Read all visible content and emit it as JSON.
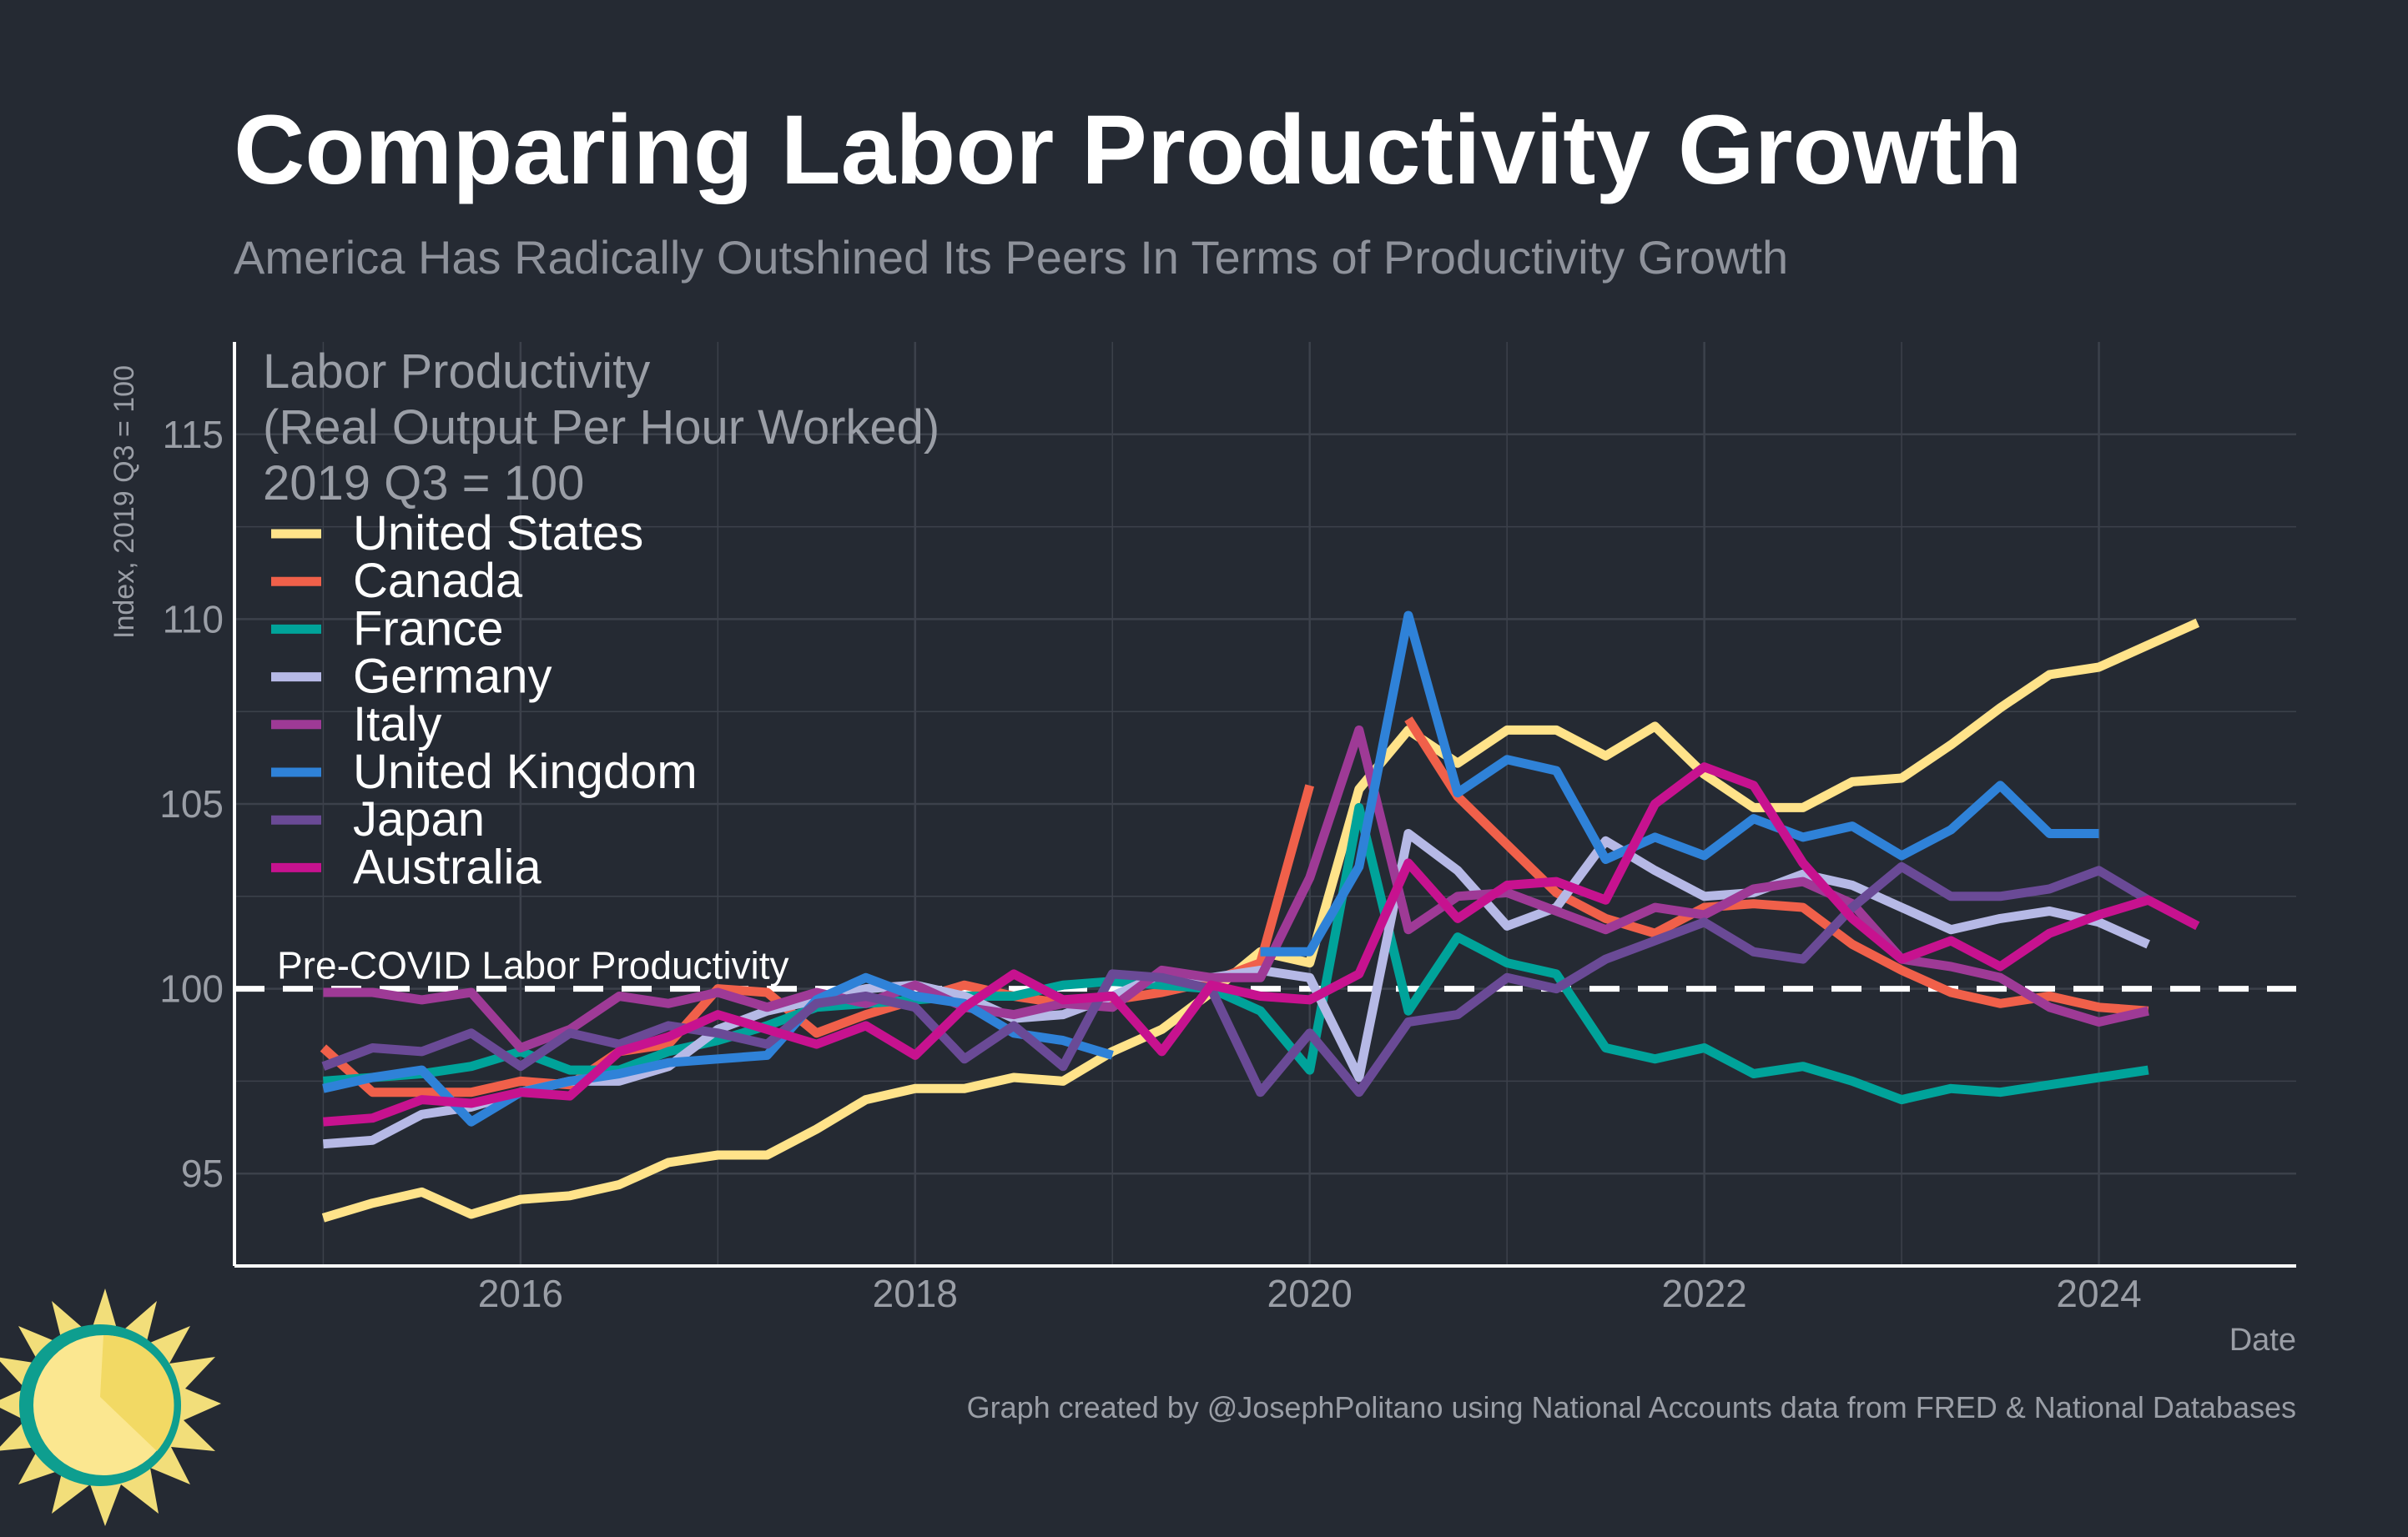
{
  "title": "Comparing Labor Productivity Growth",
  "subtitle": "America Has Radically Outshined Its Peers In Terms of Productivity Growth",
  "caption": "Graph created by @JosephPolitano using National Accounts data from FRED & National Databases",
  "chart_data": {
    "type": "line",
    "xlabel": "Date",
    "ylabel": "Index, 2019 Q3 = 100",
    "xlim": [
      2014.55,
      2025.0
    ],
    "ylim": [
      92.5,
      117.5
    ],
    "x_ticks": [
      2016,
      2018,
      2020,
      2022,
      2024
    ],
    "x_tick_labels": [
      "2016",
      "2018",
      "2020",
      "2022",
      "2024"
    ],
    "y_ticks": [
      95,
      100,
      105,
      110,
      115
    ],
    "y_tick_labels": [
      "95",
      "100",
      "105",
      "110",
      "115"
    ],
    "grid": true,
    "legend": {
      "title_lines": [
        "Labor Productivity",
        "(Real Output Per Hour Worked)",
        "2019 Q3 = 100"
      ],
      "placement": "top-left"
    },
    "reference_line": {
      "y": 100,
      "label": "Pre-COVID Labor Productivity",
      "style": "dashed",
      "color": "#ffffff"
    },
    "series": [
      {
        "name": "United States",
        "color": "#ffe38a",
        "x_start": 2015.0,
        "step": 0.25,
        "values": [
          93.8,
          94.2,
          94.5,
          93.9,
          94.3,
          94.4,
          94.7,
          95.3,
          95.5,
          95.5,
          96.2,
          97.0,
          97.3,
          97.3,
          97.6,
          97.5,
          98.3,
          98.9,
          99.9,
          101.0,
          100.7,
          105.4,
          107.0,
          106.1,
          107.0,
          107.0,
          106.3,
          107.1,
          105.8,
          104.9,
          104.9,
          105.6,
          105.7,
          106.6,
          107.6,
          108.5,
          108.7,
          109.3,
          109.9
        ]
      },
      {
        "name": "Canada",
        "color": "#f0604a",
        "x_start": 2015.0,
        "step": 0.25,
        "values": [
          98.4,
          97.2,
          97.2,
          97.2,
          97.5,
          97.4,
          98.3,
          98.5,
          100.0,
          99.9,
          98.8,
          99.3,
          99.7,
          100.1,
          99.8,
          99.6,
          99.7,
          99.9,
          100.2,
          100.7,
          105.5,
          null,
          107.3,
          105.2,
          103.9,
          102.6,
          101.9,
          101.5,
          102.2,
          102.3,
          102.2,
          101.2,
          100.5,
          99.9,
          99.6,
          99.8,
          99.5,
          99.4
        ]
      },
      {
        "name": "France",
        "color": "#00a39a",
        "x_start": 2015.0,
        "step": 0.25,
        "values": [
          97.5,
          97.6,
          97.7,
          97.9,
          98.3,
          97.8,
          97.8,
          98.3,
          98.6,
          99.0,
          99.5,
          99.6,
          99.7,
          99.8,
          99.8,
          100.1,
          100.2,
          100.1,
          100.0,
          99.4,
          97.8,
          104.9,
          99.4,
          101.4,
          100.7,
          100.4,
          98.4,
          98.1,
          98.4,
          97.7,
          97.9,
          97.5,
          97.0,
          97.3,
          97.2,
          97.4,
          97.6,
          97.8
        ]
      },
      {
        "name": "Germany",
        "color": "#b6b9e6",
        "x_start": 2015.0,
        "step": 0.25,
        "values": [
          95.8,
          95.9,
          96.6,
          96.8,
          97.2,
          97.5,
          97.5,
          97.9,
          98.9,
          99.4,
          99.7,
          100.0,
          100.1,
          99.8,
          99.2,
          99.3,
          99.8,
          100.4,
          100.3,
          100.5,
          100.3,
          97.6,
          104.2,
          103.2,
          101.7,
          102.2,
          104.0,
          103.2,
          102.5,
          102.6,
          103.1,
          102.8,
          102.2,
          101.6,
          101.9,
          102.1,
          101.8,
          101.2
        ]
      },
      {
        "name": "Italy",
        "color": "#9e3a96",
        "x_start": 2015.0,
        "step": 0.25,
        "values": [
          99.9,
          99.9,
          99.7,
          99.9,
          98.4,
          98.9,
          99.8,
          99.6,
          99.9,
          99.5,
          99.9,
          99.6,
          100.1,
          99.5,
          99.3,
          99.6,
          99.5,
          100.5,
          100.3,
          100.3,
          103.0,
          107.0,
          101.6,
          102.5,
          102.6,
          102.1,
          101.6,
          102.2,
          102.0,
          102.7,
          102.9,
          102.3,
          100.8,
          100.6,
          100.3,
          99.5,
          99.1,
          99.4
        ]
      },
      {
        "name": "United Kingdom",
        "color": "#2f82d8",
        "x_start": 2015.0,
        "step": 0.25,
        "values": [
          97.3,
          97.6,
          97.8,
          96.4,
          97.2,
          97.5,
          97.7,
          98.0,
          98.1,
          98.2,
          99.7,
          100.3,
          99.8,
          99.6,
          98.8,
          98.6,
          98.2,
          null,
          null,
          101.0,
          101.0,
          103.3,
          110.1,
          105.3,
          106.2,
          105.9,
          103.5,
          104.1,
          103.6,
          104.6,
          104.1,
          104.4,
          103.6,
          104.3,
          105.5,
          104.2,
          104.2
        ]
      },
      {
        "name": "Japan",
        "color": "#6a4a96",
        "x_start": 2015.0,
        "step": 0.25,
        "values": [
          97.9,
          98.4,
          98.3,
          98.8,
          97.9,
          98.8,
          98.5,
          99.0,
          98.8,
          98.5,
          99.6,
          99.8,
          99.5,
          98.1,
          99.0,
          97.9,
          100.4,
          100.3,
          100.0,
          97.2,
          98.8,
          97.2,
          99.1,
          99.3,
          100.3,
          100.0,
          100.8,
          101.3,
          101.8,
          101.0,
          100.8,
          102.2,
          103.3,
          102.5,
          102.5,
          102.7,
          103.2,
          102.4
        ]
      },
      {
        "name": "Australia",
        "color": "#c7128f",
        "x_start": 2015.0,
        "step": 0.25,
        "values": [
          96.4,
          96.5,
          97.0,
          96.9,
          97.2,
          97.1,
          98.3,
          98.7,
          99.3,
          98.9,
          98.5,
          99.0,
          98.2,
          99.5,
          100.4,
          99.7,
          99.8,
          98.3,
          100.1,
          99.8,
          99.7,
          100.4,
          103.4,
          101.9,
          102.8,
          102.9,
          102.4,
          105.0,
          106.0,
          105.5,
          103.4,
          101.9,
          100.8,
          101.3,
          100.6,
          101.5,
          102.0,
          102.4,
          101.7
        ]
      }
    ]
  },
  "colors": {
    "background": "#252a33",
    "grid": "#3c414b",
    "axis": "#ffffff",
    "logo_sun": "#f2de7a",
    "logo_ring": "#0e9e8f"
  }
}
